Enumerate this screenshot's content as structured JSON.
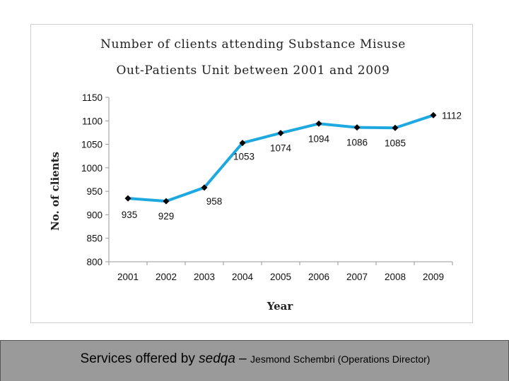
{
  "chart_data": {
    "type": "line",
    "title_lines": [
      "Number of clients attending Substance Misuse",
      "Out-Patients Unit between 2001 and 2009"
    ],
    "xlabel": "Year",
    "ylabel": "No. of clients",
    "categories": [
      "2001",
      "2002",
      "2003",
      "2004",
      "2005",
      "2006",
      "2007",
      "2008",
      "2009"
    ],
    "values": [
      935,
      929,
      958,
      1053,
      1074,
      1094,
      1086,
      1085,
      1112
    ],
    "data_labels": [
      "935",
      "929",
      "958",
      "1053",
      "1074",
      "1094",
      "1086",
      "1085",
      "1112"
    ],
    "ylim": [
      800,
      1150
    ],
    "yticks": [
      "800",
      "850",
      "900",
      "950",
      "1000",
      "1050",
      "1100",
      "1150"
    ],
    "grid": false,
    "colors": {
      "line": "#1ea8e0",
      "marker": "#000000",
      "axis": "#999999"
    }
  },
  "footer": {
    "lead": "Services offered by ",
    "brand": "sedqa",
    "separator": " – ",
    "credit": "Jesmond Schembri (Operations Director)"
  }
}
